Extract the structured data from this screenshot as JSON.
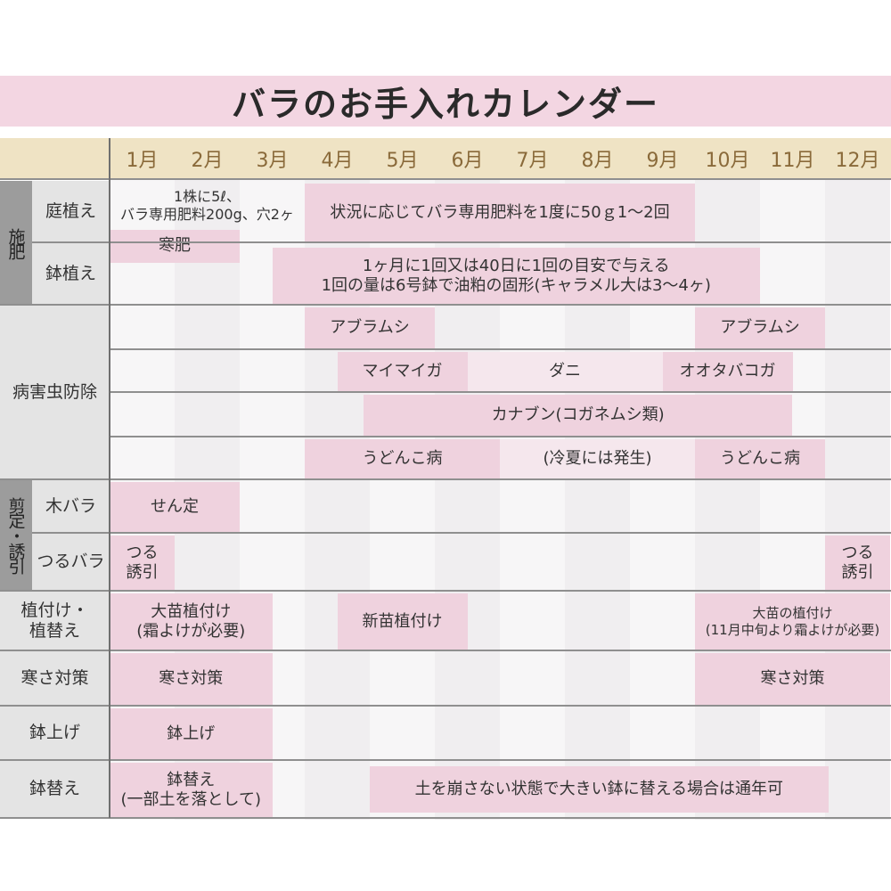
{
  "title": "バラのお手入れカレンダー",
  "months": [
    "1月",
    "2月",
    "3月",
    "4月",
    "5月",
    "6月",
    "7月",
    "8月",
    "9月",
    "10月",
    "11月",
    "12月"
  ],
  "colors": {
    "bar": "#efd2de",
    "bar_light": "#f5e7ed",
    "header": "#efe3c4",
    "title_band": "#f3d6e2"
  },
  "groups": [
    {
      "key": "fert",
      "label": "施肥",
      "rows": [
        "niwa",
        "hachi"
      ]
    },
    {
      "key": "prune",
      "label": "剪定・誘引",
      "rows": [
        "ki",
        "tsuru"
      ]
    }
  ],
  "rows": [
    {
      "key": "niwa",
      "label": "庭植え",
      "group": "fert"
    },
    {
      "key": "hachi",
      "label": "鉢植え",
      "group": "fert"
    },
    {
      "key": "pest",
      "label": "病害虫防除",
      "rows": [
        "p1",
        "p2",
        "p3",
        "p4"
      ]
    },
    {
      "key": "ki",
      "label": "木バラ",
      "group": "prune"
    },
    {
      "key": "tsuru",
      "label": "つるバラ",
      "group": "prune"
    },
    {
      "key": "ue",
      "label": "植付け・\n植替え"
    },
    {
      "key": "samusa",
      "label": "寒さ対策"
    },
    {
      "key": "hachiage",
      "label": "鉢上げ"
    },
    {
      "key": "hachikae",
      "label": "鉢替え"
    }
  ],
  "bars": [
    {
      "row": "niwa_top",
      "start": 1,
      "end": 4,
      "label": "1株に5ℓ、\nバラ専用肥料200g、穴2ヶ",
      "tone": "plain"
    },
    {
      "row": "niwa",
      "start": 4,
      "end": 10,
      "label": "状況に応じてバラ専用肥料を1度に50ｇ1～2回",
      "tone": "normal"
    },
    {
      "row": "kangoe",
      "start": 1,
      "end": 3,
      "label": "寒肥",
      "tone": "normal"
    },
    {
      "row": "hachi",
      "start": 3.5,
      "end": 11,
      "label": "1ヶ月に1回又は40日に1回の目安で与える\n1回の量は6号鉢で油粕の固形(キャラメル大は3～4ヶ)",
      "tone": "normal"
    },
    {
      "row": "p1",
      "start": 4,
      "end": 6,
      "label": "アブラムシ",
      "tone": "normal"
    },
    {
      "row": "p1",
      "start": 10,
      "end": 12,
      "label": "アブラムシ",
      "tone": "normal"
    },
    {
      "row": "p2",
      "start": 4.5,
      "end": 6.5,
      "label": "マイマイガ",
      "tone": "normal"
    },
    {
      "row": "p2",
      "start": 6.5,
      "end": 9.5,
      "label": "ダニ",
      "tone": "light"
    },
    {
      "row": "p2",
      "start": 9.5,
      "end": 11.5,
      "label": "オオタバコガ",
      "tone": "normal"
    },
    {
      "row": "p3",
      "start": 4.9,
      "end": 11.5,
      "label": "カナブン(コガネムシ類)",
      "tone": "normal"
    },
    {
      "row": "p4",
      "start": 4,
      "end": 7,
      "label": "うどんこ病",
      "tone": "normal"
    },
    {
      "row": "p4",
      "start": 7,
      "end": 10,
      "label": "(冷夏には発生)",
      "tone": "light"
    },
    {
      "row": "p4",
      "start": 10,
      "end": 12,
      "label": "うどんこ病",
      "tone": "normal"
    },
    {
      "row": "ki",
      "start": 1,
      "end": 3,
      "label": "せん定",
      "tone": "normal"
    },
    {
      "row": "tsuru",
      "start": 1,
      "end": 2,
      "label": "つる\n誘引",
      "tone": "normal"
    },
    {
      "row": "tsuru",
      "start": 12,
      "end": 13,
      "label": "つる\n誘引",
      "tone": "normal"
    },
    {
      "row": "ue",
      "start": 1,
      "end": 3.5,
      "label": "大苗植付け\n(霜よけが必要)",
      "tone": "normal"
    },
    {
      "row": "ue",
      "start": 4.5,
      "end": 6.5,
      "label": "新苗植付け",
      "tone": "normal"
    },
    {
      "row": "ue",
      "start": 10,
      "end": 13,
      "label": "大苗の植付け\n(11月中旬より霜よけが必要)",
      "tone": "normal",
      "small": true
    },
    {
      "row": "samusa",
      "start": 1,
      "end": 3.5,
      "label": "寒さ対策",
      "tone": "normal"
    },
    {
      "row": "samusa",
      "start": 10,
      "end": 13,
      "label": "寒さ対策",
      "tone": "normal"
    },
    {
      "row": "hachiage",
      "start": 1,
      "end": 3.5,
      "label": "鉢上げ",
      "tone": "normal"
    },
    {
      "row": "hachikae",
      "start": 1,
      "end": 3.5,
      "label": "鉢替え\n(一部土を落として)",
      "tone": "normal"
    },
    {
      "row": "hachikae_in",
      "start": 5,
      "end": 12.05,
      "label": "土を崩さない状態で大きい鉢に替える場合は通年可",
      "tone": "normal"
    }
  ]
}
